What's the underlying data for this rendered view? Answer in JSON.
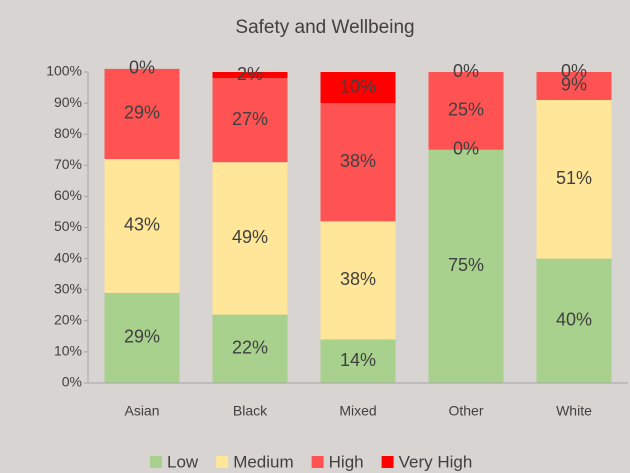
{
  "chart_data": {
    "type": "stacked_bar",
    "title": "Safety and Wellbeing",
    "categories": [
      "Asian",
      "Black",
      "Mixed",
      "Other",
      "White"
    ],
    "series": [
      {
        "name": "Low",
        "color": "#a9d18e",
        "values": [
          29,
          22,
          14,
          75,
          40
        ],
        "value_labels": [
          "29%",
          "22%",
          "14%",
          "75%",
          "40%"
        ]
      },
      {
        "name": "Medium",
        "color": "#ffe699",
        "values": [
          43,
          49,
          38,
          0,
          51
        ],
        "value_labels": [
          "43%",
          "49%",
          "38%",
          "0%",
          "51%"
        ]
      },
      {
        "name": "High",
        "color": "#ff5353",
        "values": [
          29,
          27,
          38,
          25,
          9
        ],
        "value_labels": [
          "29%",
          "27%",
          "38%",
          "25%",
          "9%"
        ]
      },
      {
        "name": "Very High",
        "color": "#ff0000",
        "values": [
          0,
          2,
          10,
          0,
          0
        ],
        "value_labels": [
          "0%",
          "2%",
          "10%",
          "0%",
          "0%"
        ]
      }
    ],
    "ylim": [
      0,
      100
    ],
    "yticks": [
      {
        "value": 0,
        "label": "0%"
      },
      {
        "value": 10,
        "label": "10%"
      },
      {
        "value": 20,
        "label": "20%"
      },
      {
        "value": 30,
        "label": "30%"
      },
      {
        "value": 40,
        "label": "40%"
      },
      {
        "value": 50,
        "label": "50%"
      },
      {
        "value": 60,
        "label": "60%"
      },
      {
        "value": 70,
        "label": "70%"
      },
      {
        "value": 80,
        "label": "80%"
      },
      {
        "value": 90,
        "label": "90%"
      },
      {
        "value": 100,
        "label": "100%"
      }
    ],
    "legend": "bottom"
  }
}
